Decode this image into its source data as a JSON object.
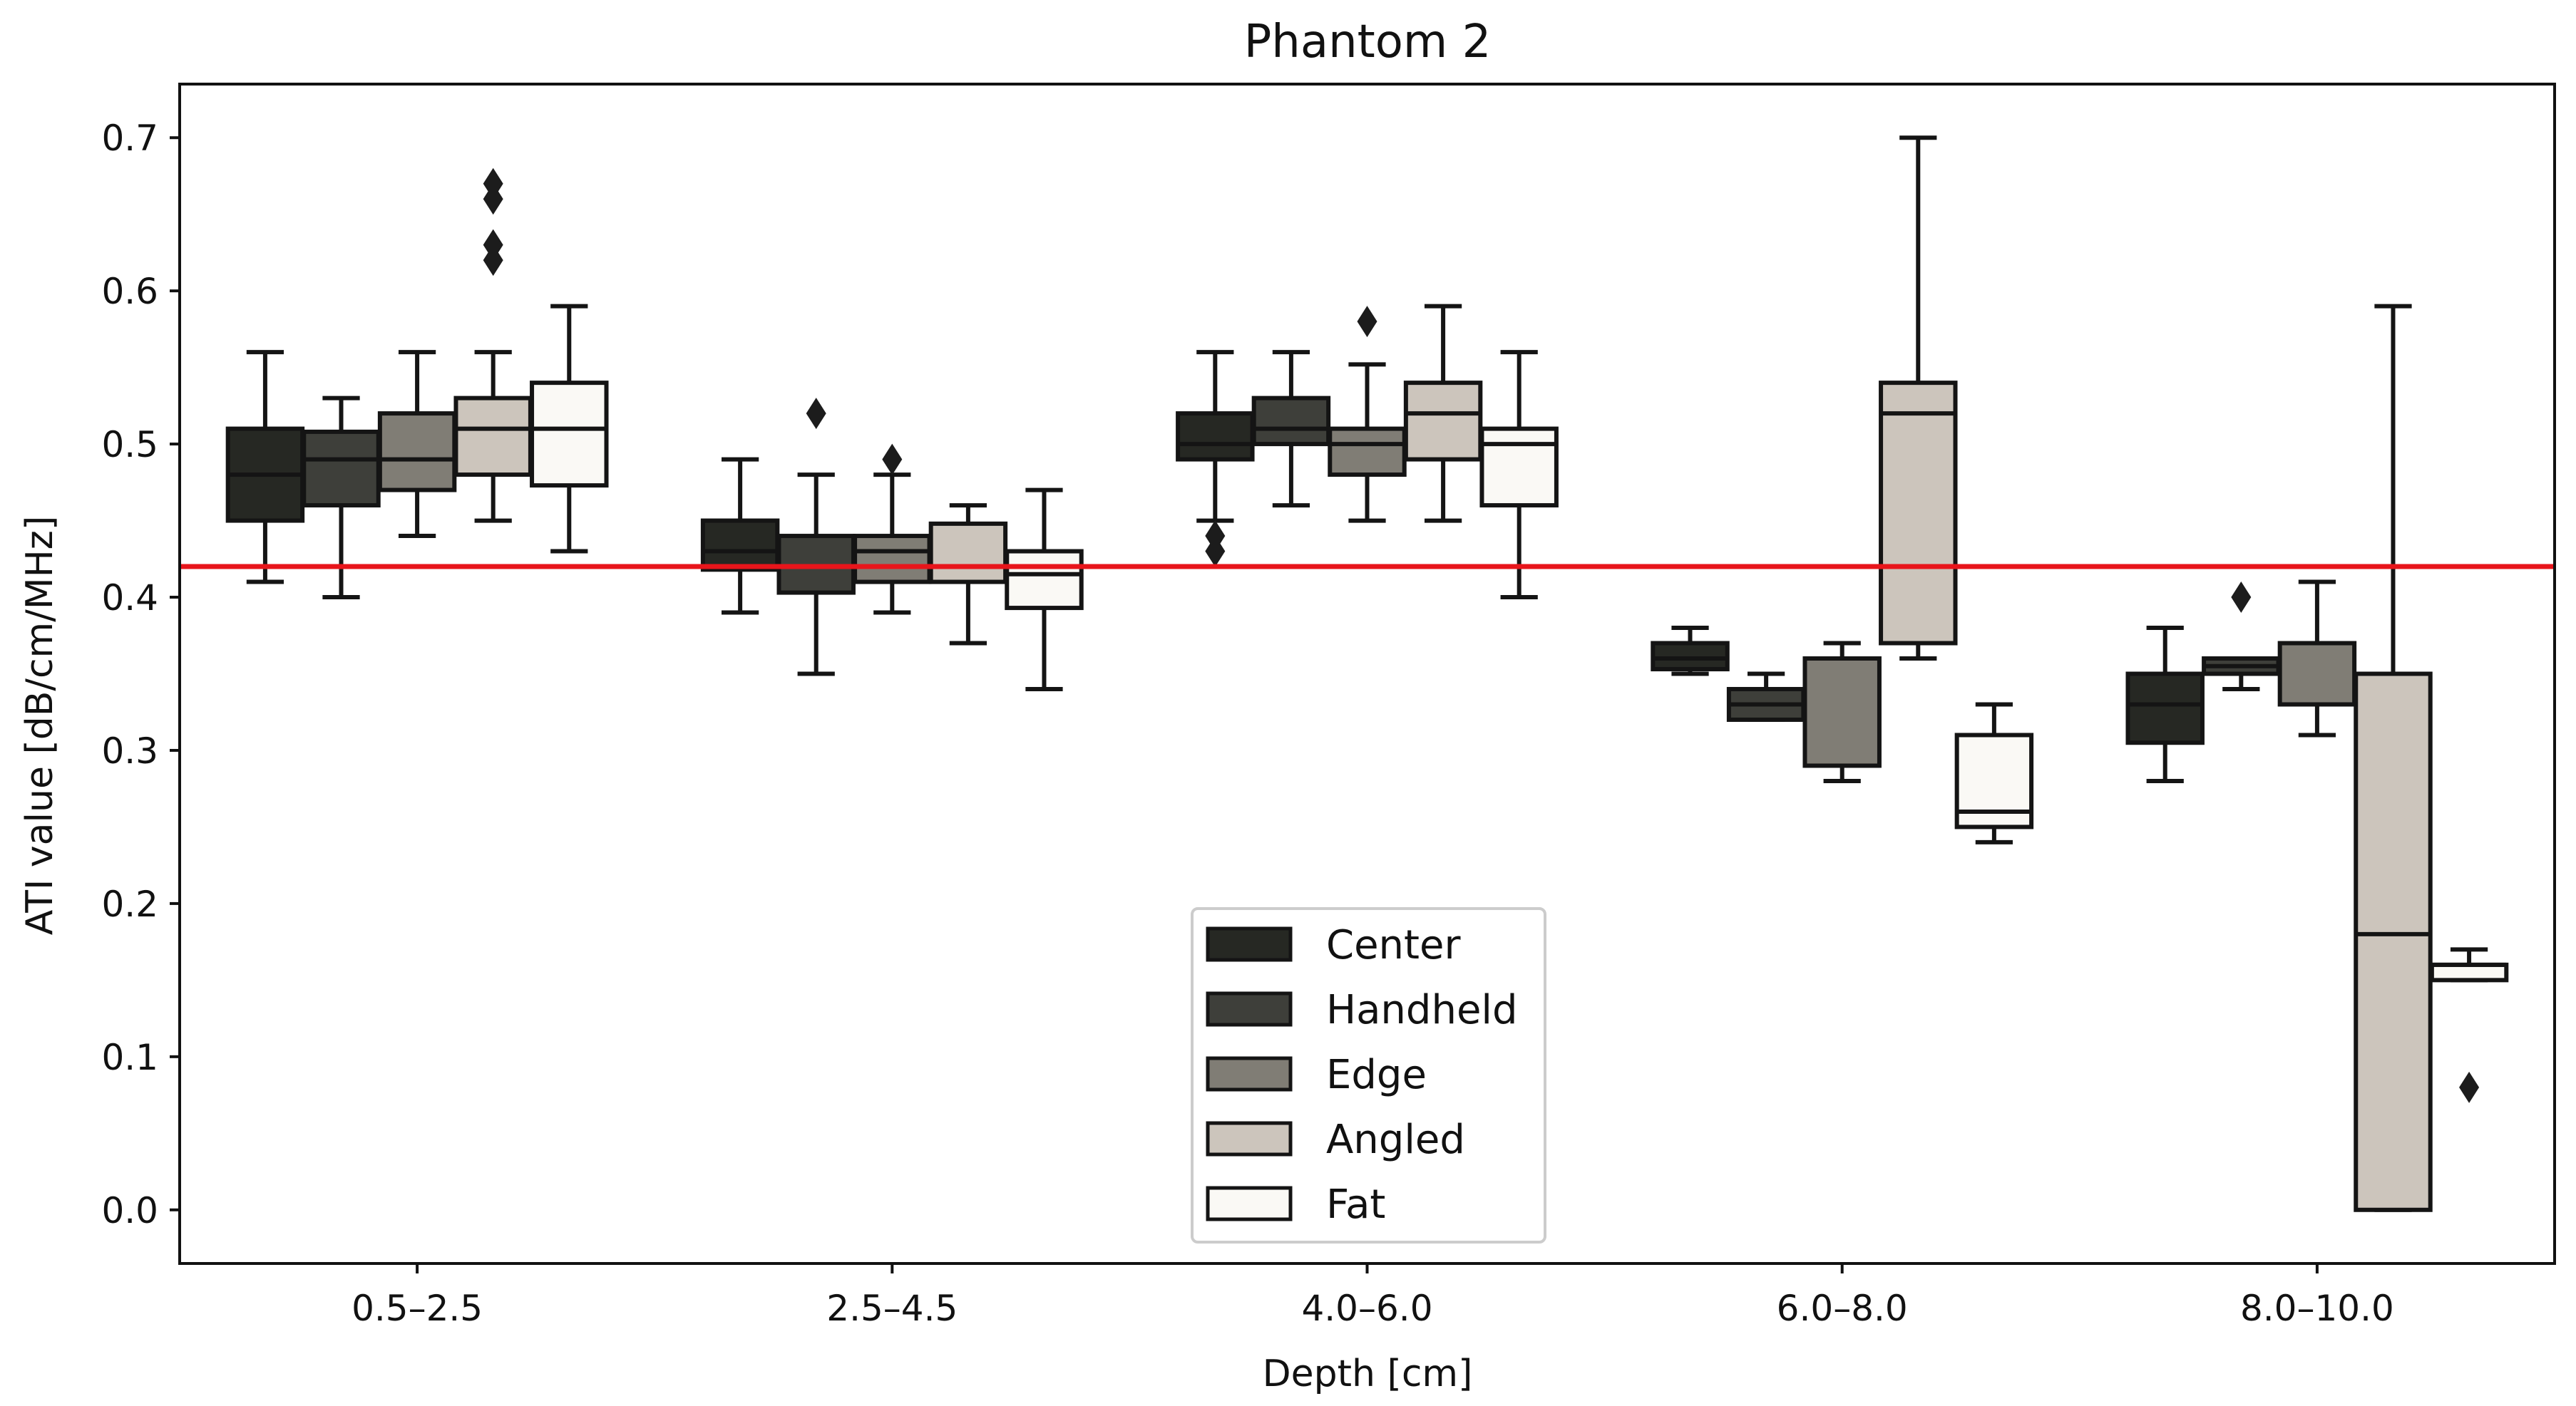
{
  "chart_data": {
    "type": "box",
    "title": "Phantom 2",
    "xlabel": "Depth [cm]",
    "ylabel": "ATI value [dB/cm/MHz]",
    "ylim": [
      -0.035,
      0.735
    ],
    "yticks": [
      0.0,
      0.1,
      0.2,
      0.3,
      0.4,
      0.5,
      0.6,
      0.7
    ],
    "ytick_labels": [
      "0.0",
      "0.1",
      "0.2",
      "0.3",
      "0.4",
      "0.5",
      "0.6",
      "0.7"
    ],
    "categories": [
      "0.5–2.5",
      "2.5–4.5",
      "4.0–6.0",
      "6.0–8.0",
      "8.0–10.0"
    ],
    "reference_line": {
      "y": 0.42,
      "color": "#e8151b"
    },
    "legend": {
      "position": "lower-center"
    },
    "series": [
      {
        "name": "Center",
        "color": "#262823",
        "boxes": [
          {
            "whislo": 0.41,
            "q1": 0.45,
            "med": 0.48,
            "q3": 0.51,
            "whishi": 0.56,
            "fliers": []
          },
          {
            "whislo": 0.39,
            "q1": 0.418,
            "med": 0.43,
            "q3": 0.45,
            "whishi": 0.49,
            "fliers": []
          },
          {
            "whislo": 0.45,
            "q1": 0.49,
            "med": 0.5,
            "q3": 0.52,
            "whishi": 0.56,
            "fliers": [
              0.43,
              0.44
            ]
          },
          {
            "whislo": 0.35,
            "q1": 0.353,
            "med": 0.36,
            "q3": 0.37,
            "whishi": 0.38,
            "fliers": []
          },
          {
            "whislo": 0.28,
            "q1": 0.305,
            "med": 0.33,
            "q3": 0.35,
            "whishi": 0.38,
            "fliers": []
          }
        ]
      },
      {
        "name": "Handheld",
        "color": "#3e3f3a",
        "boxes": [
          {
            "whislo": 0.4,
            "q1": 0.46,
            "med": 0.49,
            "q3": 0.508,
            "whishi": 0.53,
            "fliers": []
          },
          {
            "whislo": 0.35,
            "q1": 0.403,
            "med": 0.42,
            "q3": 0.44,
            "whishi": 0.48,
            "fliers": [
              0.52
            ]
          },
          {
            "whislo": 0.46,
            "q1": 0.5,
            "med": 0.51,
            "q3": 0.53,
            "whishi": 0.56,
            "fliers": []
          },
          {
            "whislo": 0.32,
            "q1": 0.32,
            "med": 0.33,
            "q3": 0.34,
            "whishi": 0.35,
            "fliers": []
          },
          {
            "whislo": 0.34,
            "q1": 0.35,
            "med": 0.355,
            "q3": 0.36,
            "whishi": 0.36,
            "fliers": [
              0.4
            ]
          }
        ]
      },
      {
        "name": "Edge",
        "color": "#807d75",
        "boxes": [
          {
            "whislo": 0.44,
            "q1": 0.47,
            "med": 0.49,
            "q3": 0.52,
            "whishi": 0.56,
            "fliers": []
          },
          {
            "whislo": 0.39,
            "q1": 0.41,
            "med": 0.43,
            "q3": 0.44,
            "whishi": 0.48,
            "fliers": [
              0.49
            ]
          },
          {
            "whislo": 0.45,
            "q1": 0.48,
            "med": 0.5,
            "q3": 0.51,
            "whishi": 0.552,
            "fliers": [
              0.58
            ]
          },
          {
            "whislo": 0.28,
            "q1": 0.29,
            "med": 0.29,
            "q3": 0.36,
            "whishi": 0.37,
            "fliers": []
          },
          {
            "whislo": 0.31,
            "q1": 0.33,
            "med": 0.33,
            "q3": 0.37,
            "whishi": 0.41,
            "fliers": []
          }
        ]
      },
      {
        "name": "Angled",
        "color": "#ccc5bc",
        "boxes": [
          {
            "whislo": 0.45,
            "q1": 0.48,
            "med": 0.51,
            "q3": 0.53,
            "whishi": 0.56,
            "fliers": [
              0.62,
              0.63,
              0.66,
              0.67
            ]
          },
          {
            "whislo": 0.37,
            "q1": 0.41,
            "med": 0.42,
            "q3": 0.448,
            "whishi": 0.46,
            "fliers": []
          },
          {
            "whislo": 0.45,
            "q1": 0.49,
            "med": 0.52,
            "q3": 0.54,
            "whishi": 0.59,
            "fliers": []
          },
          {
            "whislo": 0.36,
            "q1": 0.37,
            "med": 0.52,
            "q3": 0.54,
            "whishi": 0.7,
            "fliers": []
          },
          {
            "whislo": 0.0,
            "q1": 0.0,
            "med": 0.18,
            "q3": 0.35,
            "whishi": 0.59,
            "fliers": []
          }
        ]
      },
      {
        "name": "Fat",
        "color": "#faf9f5",
        "boxes": [
          {
            "whislo": 0.43,
            "q1": 0.473,
            "med": 0.51,
            "q3": 0.54,
            "whishi": 0.59,
            "fliers": []
          },
          {
            "whislo": 0.34,
            "q1": 0.393,
            "med": 0.415,
            "q3": 0.43,
            "whishi": 0.47,
            "fliers": []
          },
          {
            "whislo": 0.4,
            "q1": 0.46,
            "med": 0.5,
            "q3": 0.51,
            "whishi": 0.56,
            "fliers": []
          },
          {
            "whislo": 0.24,
            "q1": 0.25,
            "med": 0.26,
            "q3": 0.31,
            "whishi": 0.33,
            "fliers": []
          },
          {
            "whislo": 0.15,
            "q1": 0.15,
            "med": 0.16,
            "q3": 0.16,
            "whishi": 0.17,
            "fliers": [
              0.08
            ]
          }
        ]
      }
    ]
  }
}
